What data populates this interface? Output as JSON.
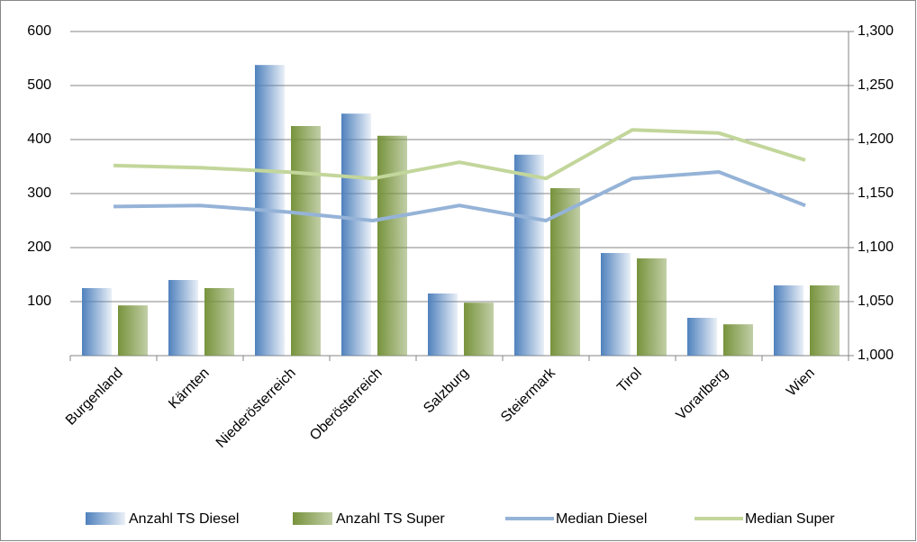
{
  "chart_data": {
    "type": "bar-line",
    "categories": [
      "Burgenland",
      "Kärnten",
      "Niederösterreich",
      "Oberösterreich",
      "Salzburg",
      "Steiermark",
      "Tirol",
      "Vorarlberg",
      "Wien"
    ],
    "series": [
      {
        "name": "Anzahl TS Diesel",
        "type": "bar",
        "color": "#4f81bd",
        "values": [
          125,
          140,
          538,
          448,
          115,
          372,
          190,
          70,
          130
        ]
      },
      {
        "name": "Anzahl TS Super",
        "type": "bar",
        "color": "#77933c",
        "values": [
          93,
          125,
          425,
          407,
          98,
          310,
          180,
          58,
          130
        ]
      },
      {
        "name": "Median Diesel",
        "type": "line",
        "axis": "y2",
        "color": "#95b3d7",
        "values": [
          1.138,
          1.139,
          1.133,
          1.125,
          1.139,
          1.125,
          1.164,
          1.17,
          1.139
        ]
      },
      {
        "name": "Median Super",
        "type": "line",
        "axis": "y2",
        "color": "#c3d69b",
        "values": [
          1.176,
          1.174,
          1.17,
          1.164,
          1.179,
          1.164,
          1.209,
          1.206,
          1.181
        ]
      }
    ],
    "ylim": [
      0,
      600
    ],
    "yticks": [
      100,
      200,
      300,
      400,
      500,
      600
    ],
    "y2lim": [
      1.0,
      1.3
    ],
    "y2ticks": [
      {
        "value": 1.0,
        "label": "1,000"
      },
      {
        "value": 1.05,
        "label": "1,050"
      },
      {
        "value": 1.1,
        "label": "1,100"
      },
      {
        "value": 1.15,
        "label": "1,150"
      },
      {
        "value": 1.2,
        "label": "1,200"
      },
      {
        "value": 1.25,
        "label": "1,250"
      },
      {
        "value": 1.3,
        "label": "1,300"
      }
    ],
    "grid": true,
    "legend": "bottom"
  }
}
